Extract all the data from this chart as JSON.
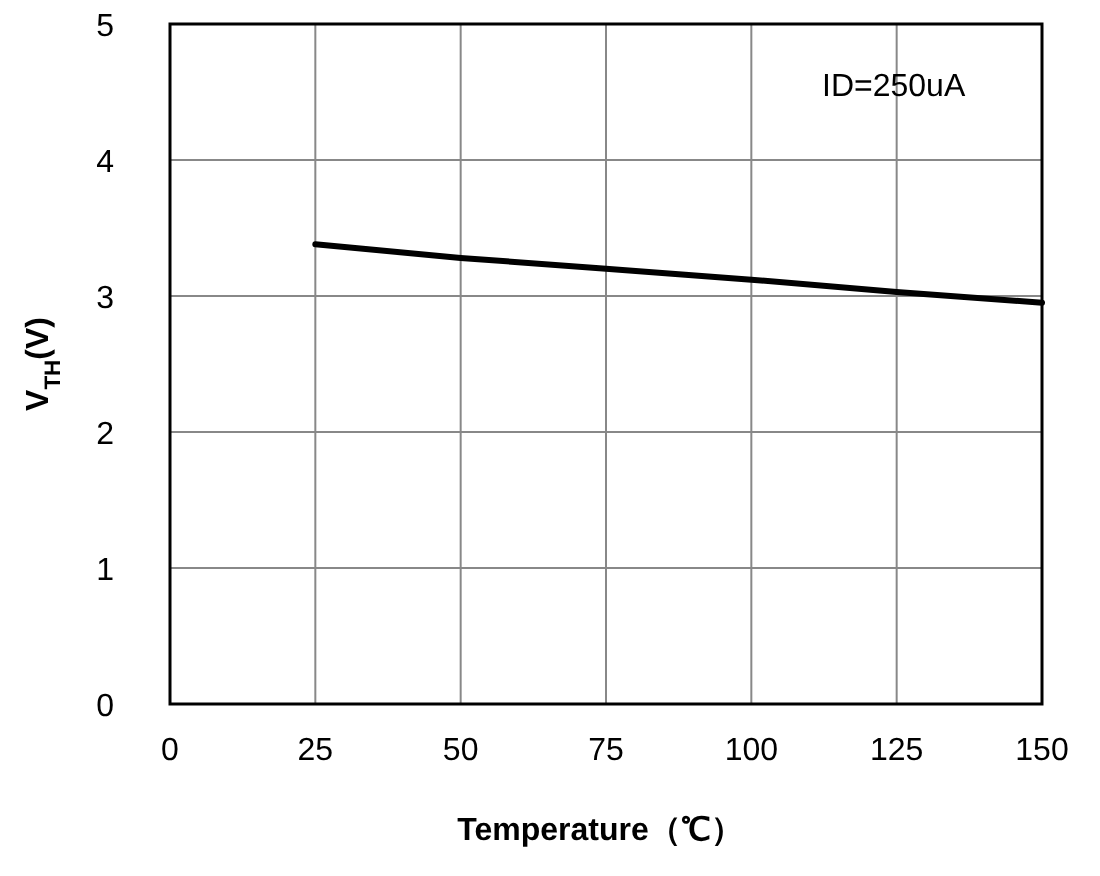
{
  "chart_data": {
    "type": "line",
    "xlabel": "Temperature（℃）",
    "ylabel": "V$_{TH}$(V)",
    "annotations": [
      "ID=250uA"
    ],
    "x": [
      25,
      50,
      75,
      100,
      125,
      150
    ],
    "series": [
      {
        "color": "#000000",
        "values": [
          3.38,
          3.28,
          3.2,
          3.12,
          3.03,
          2.95
        ]
      }
    ],
    "xlim": [
      0,
      150
    ],
    "xticks": [
      0,
      25,
      50,
      75,
      100,
      125,
      150
    ],
    "ylim": [
      0,
      5
    ],
    "yticks": [
      0,
      1,
      2,
      3,
      4,
      5
    ],
    "grid": true,
    "marker": "none",
    "line_style": "solid"
  }
}
